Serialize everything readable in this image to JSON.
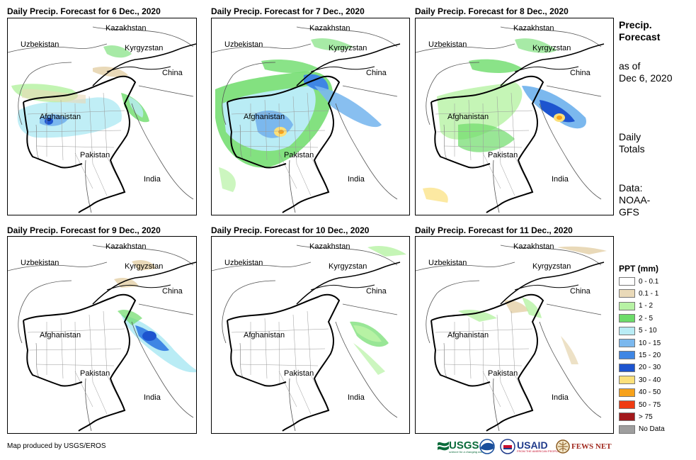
{
  "panels": [
    {
      "title": "Daily Precip. Forecast for 6 Dec., 2020"
    },
    {
      "title": "Daily Precip. Forecast for 7 Dec., 2020"
    },
    {
      "title": "Daily Precip. Forecast for 8 Dec., 2020"
    },
    {
      "title": "Daily Precip. Forecast for 9 Dec., 2020"
    },
    {
      "title": "Daily Precip. Forecast for 10 Dec., 2020"
    },
    {
      "title": "Daily Precip. Forecast for 11 Dec., 2020"
    }
  ],
  "map_labels": {
    "kazakhstan": "Kazakhstan",
    "uzbekistan": "Uzbekistan",
    "kyrgyzstan": "Kyrgyzstan",
    "china": "China",
    "afghanistan": "Afghanistan",
    "pakistan": "Pakistan",
    "india": "India"
  },
  "side": {
    "title_line1": "Precip.",
    "title_line2": "Forecast",
    "asof_line1": "as of",
    "asof_line2": "Dec 6, 2020",
    "daily_line1": "Daily",
    "daily_line2": "Totals",
    "data_line1": "Data:",
    "data_line2": "NOAA-",
    "data_line3": "GFS"
  },
  "legend": {
    "title": "PPT (mm)",
    "items": [
      {
        "label": "0 - 0.1",
        "color": "#ffffff"
      },
      {
        "label": "0.1 - 1",
        "color": "#e9d9b8"
      },
      {
        "label": "1 - 2",
        "color": "#b7f2a4"
      },
      {
        "label": "2 - 5",
        "color": "#6ddc6a"
      },
      {
        "label": "5 - 10",
        "color": "#b9ecf5"
      },
      {
        "label": "10 - 15",
        "color": "#7bb8ee"
      },
      {
        "label": "15 - 20",
        "color": "#3f86e4"
      },
      {
        "label": "20 - 30",
        "color": "#1d54cf"
      },
      {
        "label": "30 - 40",
        "color": "#fbe07a"
      },
      {
        "label": "40 - 50",
        "color": "#f7a21b"
      },
      {
        "label": "50 - 75",
        "color": "#ef3b12"
      },
      {
        "label": "> 75",
        "color": "#a2181b"
      },
      {
        "label": "No Data",
        "color": "#9e9e9e"
      }
    ]
  },
  "credit": "Map produced by USGS/EROS",
  "logos": {
    "usgs": "USGS",
    "usgs_tagline": "science for a changing world",
    "noaa": "NOAA",
    "usaid": "USAID",
    "usaid_tagline": "FROM THE AMERICAN PEOPLE",
    "fewsnet": "FEWS NET"
  }
}
